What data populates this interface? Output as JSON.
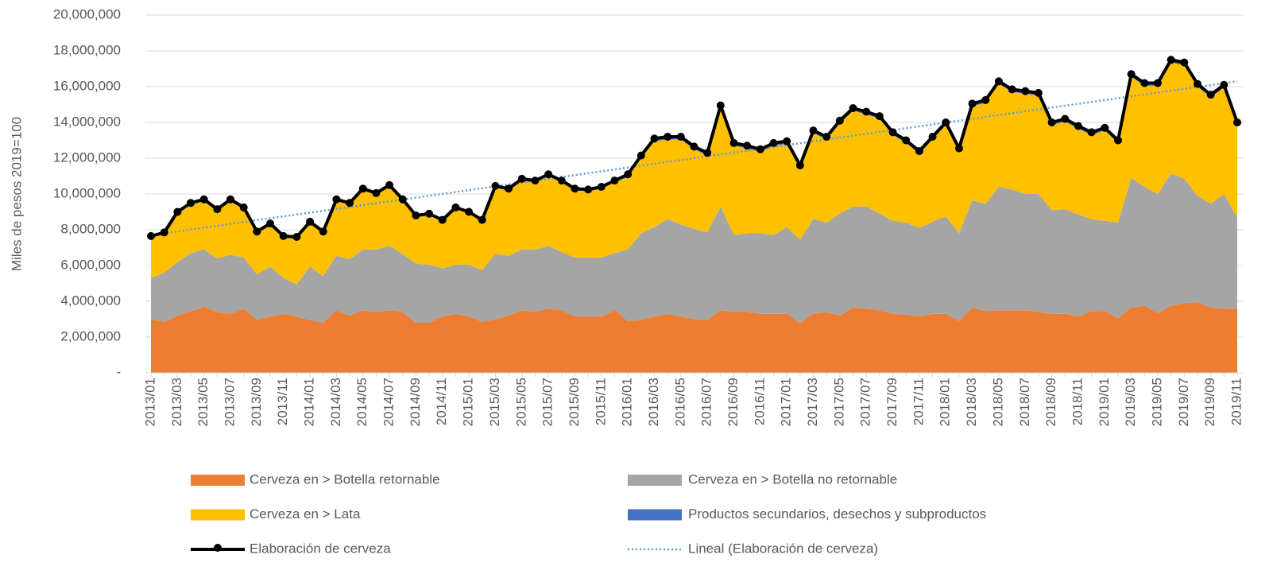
{
  "chart_data": {
    "type": "area",
    "y_label": "Miles de pesos 2019=100",
    "categories": [
      "2013/01",
      null,
      "2013/03",
      null,
      "2013/05",
      null,
      "2013/07",
      null,
      "2013/09",
      null,
      "2013/11",
      null,
      "2014/01",
      null,
      "2014/03",
      null,
      "2014/05",
      null,
      "2014/07",
      null,
      "2014/09",
      null,
      "2014/11",
      null,
      "2015/01",
      null,
      "2015/03",
      null,
      "2015/05",
      null,
      "2015/07",
      null,
      "2015/09",
      null,
      "2015/11",
      null,
      "2016/01",
      null,
      "2016/03",
      null,
      "2016/05",
      null,
      "2016/07",
      null,
      "2016/09",
      null,
      "2016/11",
      null,
      "2017/01",
      null,
      "2017/03",
      null,
      "2017/05",
      null,
      "2017/07",
      null,
      "2017/09",
      null,
      "2017/11",
      null,
      "2018/01",
      null,
      "2018/03",
      null,
      "2018/05",
      null,
      "2018/07",
      null,
      "2018/09",
      null,
      "2018/11",
      null,
      "2019/01",
      null,
      "2019/03",
      null,
      "2019/05",
      null,
      "2019/07",
      null,
      "2019/09",
      null,
      "2019/11"
    ],
    "series": [
      {
        "name": "Cerveza en > Botella retornable",
        "color": "#ed7d31",
        "values": [
          3000000,
          2850000,
          3200000,
          3450000,
          3700000,
          3400000,
          3300000,
          3600000,
          2950000,
          3150000,
          3300000,
          3150000,
          2950000,
          2800000,
          3500000,
          3200000,
          3500000,
          3400000,
          3500000,
          3400000,
          2800000,
          2800000,
          3150000,
          3300000,
          3150000,
          2850000,
          3000000,
          3200000,
          3500000,
          3400000,
          3600000,
          3500000,
          3150000,
          3150000,
          3150000,
          3500000,
          2900000,
          2950000,
          3150000,
          3300000,
          3150000,
          3000000,
          2950000,
          3500000,
          3400000,
          3400000,
          3300000,
          3300000,
          3300000,
          2800000,
          3300000,
          3400000,
          3200000,
          3650000,
          3600000,
          3500000,
          3300000,
          3250000,
          3150000,
          3300000,
          3300000,
          2900000,
          3650000,
          3450000,
          3500000,
          3500000,
          3500000,
          3400000,
          3300000,
          3300000,
          3150000,
          3450000,
          3450000,
          3050000,
          3650000,
          3750000,
          3350000,
          3750000,
          3900000,
          3950000,
          3650000,
          3600000,
          3550000
        ]
      },
      {
        "name": "Cerveza en > Botella no retornable",
        "color": "#a5a5a5",
        "values": [
          2300000,
          2750000,
          3000000,
          3250000,
          3200000,
          3000000,
          3300000,
          2850000,
          2550000,
          2800000,
          2000000,
          1800000,
          3000000,
          2600000,
          3050000,
          3150000,
          3400000,
          3500000,
          3600000,
          3250000,
          3300000,
          3250000,
          2700000,
          2750000,
          2900000,
          2900000,
          3650000,
          3350000,
          3400000,
          3500000,
          3500000,
          3250000,
          3300000,
          3300000,
          3300000,
          3200000,
          4000000,
          4850000,
          5000000,
          5300000,
          5150000,
          5050000,
          4900000,
          5800000,
          4300000,
          4400000,
          4500000,
          4400000,
          4850000,
          4650000,
          5300000,
          5000000,
          5700000,
          5650000,
          5700000,
          5400000,
          5200000,
          5150000,
          4950000,
          5150000,
          5450000,
          4900000,
          6000000,
          6000000,
          6900000,
          6750000,
          6500000,
          6600000,
          5800000,
          5850000,
          5700000,
          5150000,
          5050000,
          5350000,
          7250000,
          6650000,
          6650000,
          7400000,
          6950000,
          5950000,
          5800000,
          6400000,
          5150000
        ]
      },
      {
        "name": "Cerveza en > Lata",
        "color": "#ffc000",
        "values": [
          2250000,
          2150000,
          2700000,
          2700000,
          2700000,
          2650000,
          3000000,
          2700000,
          2300000,
          2300000,
          2250000,
          2550000,
          2400000,
          2400000,
          3050000,
          3050000,
          3300000,
          3050000,
          3300000,
          2950000,
          2600000,
          2750000,
          2600000,
          3100000,
          2850000,
          2700000,
          3700000,
          3650000,
          3850000,
          3750000,
          3900000,
          3900000,
          3750000,
          3700000,
          3850000,
          3950000,
          4050000,
          4200000,
          4800000,
          4450000,
          4750000,
          4450000,
          4300000,
          5500000,
          5000000,
          4750000,
          4550000,
          5000000,
          4650000,
          4000000,
          4800000,
          4650000,
          5050000,
          5350000,
          5150000,
          5300000,
          4800000,
          4450000,
          4150000,
          4600000,
          5100000,
          4600000,
          5250000,
          5650000,
          5750000,
          5450000,
          5600000,
          5500000,
          4750000,
          4900000,
          4800000,
          4700000,
          5050000,
          4450000,
          5650000,
          5650000,
          6050000,
          6200000,
          6350000,
          6100000,
          5950000,
          5950000,
          5150000
        ]
      },
      {
        "name": "Productos secundarios, desechos y subproductos",
        "color": "#4472c4",
        "values": [
          100000,
          100000,
          100000,
          100000,
          100000,
          100000,
          100000,
          100000,
          100000,
          100000,
          100000,
          100000,
          100000,
          100000,
          100000,
          100000,
          100000,
          100000,
          100000,
          100000,
          100000,
          100000,
          100000,
          100000,
          100000,
          100000,
          100000,
          100000,
          100000,
          100000,
          100000,
          100000,
          100000,
          100000,
          100000,
          100000,
          150000,
          150000,
          150000,
          150000,
          150000,
          150000,
          150000,
          150000,
          150000,
          150000,
          150000,
          150000,
          150000,
          150000,
          150000,
          150000,
          150000,
          150000,
          150000,
          150000,
          150000,
          150000,
          150000,
          150000,
          150000,
          150000,
          150000,
          150000,
          150000,
          150000,
          150000,
          150000,
          150000,
          150000,
          150000,
          150000,
          150000,
          150000,
          150000,
          150000,
          150000,
          150000,
          150000,
          150000,
          150000,
          150000,
          150000
        ]
      },
      {
        "name": "Elaboración de cerveza",
        "color": "#000000",
        "type": "line",
        "marker": true,
        "values": [
          7650000,
          7850000,
          9000000,
          9500000,
          9700000,
          9150000,
          9700000,
          9250000,
          7900000,
          8350000,
          7650000,
          7600000,
          8450000,
          7900000,
          9700000,
          9500000,
          10300000,
          10050000,
          10500000,
          9700000,
          8800000,
          8900000,
          8550000,
          9250000,
          9000000,
          8550000,
          10450000,
          10300000,
          10850000,
          10750000,
          11100000,
          10750000,
          10300000,
          10250000,
          10400000,
          10750000,
          11100000,
          12150000,
          13100000,
          13200000,
          13200000,
          12650000,
          12300000,
          14950000,
          12850000,
          12700000,
          12500000,
          12850000,
          12950000,
          11600000,
          13550000,
          13200000,
          14100000,
          14800000,
          14600000,
          14350000,
          13450000,
          13000000,
          12400000,
          13200000,
          14000000,
          12550000,
          15050000,
          15250000,
          16300000,
          15850000,
          15750000,
          15650000,
          14000000,
          14200000,
          13800000,
          13450000,
          13700000,
          13000000,
          16700000,
          16200000,
          16200000,
          17500000,
          17350000,
          16150000,
          15550000,
          16100000,
          14000000
        ]
      }
    ],
    "trend": {
      "name": "Lineal (Elaboración de cerveza)",
      "color": "#5b9bd5",
      "style": "dotted",
      "values": [
        7700000,
        16300000
      ]
    },
    "ylim": [
      0,
      20000000
    ],
    "yticks": [
      {
        "value": 0,
        "label": "-"
      },
      {
        "value": 2000000,
        "label": "2,000,000"
      },
      {
        "value": 4000000,
        "label": "4,000,000"
      },
      {
        "value": 6000000,
        "label": "6,000,000"
      },
      {
        "value": 8000000,
        "label": "8,000,000"
      },
      {
        "value": 10000000,
        "label": "10,000,000"
      },
      {
        "value": 12000000,
        "label": "12,000,000"
      },
      {
        "value": 14000000,
        "label": "14,000,000"
      },
      {
        "value": 16000000,
        "label": "16,000,000"
      },
      {
        "value": 18000000,
        "label": "18,000,000"
      },
      {
        "value": 20000000,
        "label": "20,000,000"
      }
    ],
    "grid": true,
    "legend": "bottom"
  }
}
